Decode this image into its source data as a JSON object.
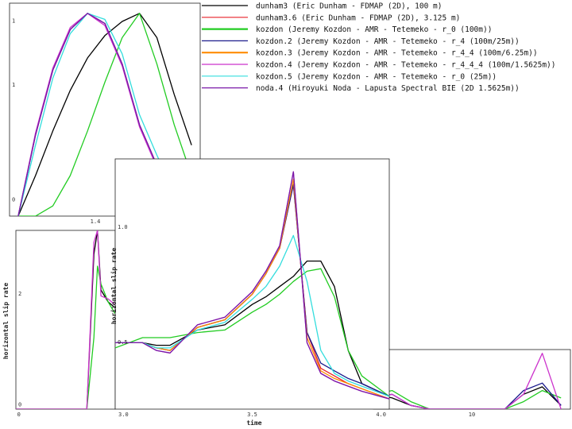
{
  "legend": {
    "entries": [
      {
        "label": "dunham3 (Eric Dunham - FDMAP (2D), 100 m)",
        "color": "#000000",
        "width": 1.2
      },
      {
        "label": "dunham3.6 (Eric Dunham - FDMAP (2D), 3.125 m)",
        "color": "#e8202a",
        "width": 1.2
      },
      {
        "label": "kozdon (Jeremy Kozdon - AMR - Tetemeko - r_0 (100m))",
        "color": "#22cc22",
        "width": 2.2
      },
      {
        "label": "kozdon.2 (Jeremy Kozdon - AMR - Tetemeko - r_4 (100m/25m))",
        "color": "#1a1a8c",
        "width": 1.2
      },
      {
        "label": "kozdon.3 (Jeremy Kozdon - AMR - Tetemeko - r_4_4 (100m/6.25m))",
        "color": "#ff8c00",
        "width": 2.2
      },
      {
        "label": "kozdon.4 (Jeremy Kozdon - AMR - Tetemeko - r_4_4_4 (100m/1.5625m))",
        "color": "#cc33cc",
        "width": 1.2
      },
      {
        "label": "kozdon.5 (Jeremy Kozdon - AMR - Tetemeko - r_0 (25m))",
        "color": "#33dddd",
        "width": 1.2
      },
      {
        "label": "noda.4 (Hiroyuki Noda - Lapusta Spectral BIE (2D 1.5625m))",
        "color": "#7a1aa8",
        "width": 1.2
      }
    ]
  },
  "chart_data": [
    {
      "type": "line",
      "panel": "top-left-zoom",
      "yticks": [
        "1",
        "1",
        "0"
      ],
      "xticks": [
        "1.4"
      ],
      "series": [
        {
          "color": "#000000",
          "x": [
            0,
            1,
            2,
            3,
            4,
            5,
            6,
            7,
            8,
            9,
            10
          ],
          "y": [
            0.0,
            0.2,
            0.42,
            0.62,
            0.78,
            0.89,
            0.96,
            1.0,
            0.88,
            0.6,
            0.35
          ]
        },
        {
          "color": "#e8202a",
          "x": [
            0,
            1,
            2,
            3,
            4,
            5,
            6,
            7,
            8,
            9,
            10
          ],
          "y": [
            0.0,
            0.4,
            0.72,
            0.92,
            1.0,
            0.95,
            0.75,
            0.45,
            0.25,
            0.1,
            0.0
          ]
        },
        {
          "color": "#22cc22",
          "x": [
            0,
            1,
            2,
            3,
            4,
            5,
            6,
            7,
            8,
            9,
            10
          ],
          "y": [
            0.0,
            0.0,
            0.05,
            0.2,
            0.42,
            0.66,
            0.88,
            1.0,
            0.75,
            0.45,
            0.2
          ]
        },
        {
          "color": "#1a1a8c",
          "x": [
            0,
            1,
            2,
            3,
            4,
            5,
            6,
            7,
            8,
            9,
            10
          ],
          "y": [
            0.0,
            0.4,
            0.72,
            0.92,
            1.0,
            0.95,
            0.75,
            0.45,
            0.25,
            0.1,
            0.0
          ]
        },
        {
          "color": "#cc33cc",
          "x": [
            0,
            1,
            2,
            3,
            4,
            5,
            6,
            7,
            8,
            9,
            10
          ],
          "y": [
            0.0,
            0.41,
            0.73,
            0.93,
            1.0,
            0.94,
            0.74,
            0.44,
            0.24,
            0.09,
            0.0
          ]
        },
        {
          "color": "#33dddd",
          "x": [
            0,
            1,
            2,
            3,
            4,
            5,
            6,
            7,
            8,
            9,
            10
          ],
          "y": [
            0.0,
            0.35,
            0.68,
            0.9,
            1.0,
            0.97,
            0.8,
            0.5,
            0.3,
            0.12,
            0.0
          ]
        },
        {
          "color": "#7a1aa8",
          "x": [
            0,
            1,
            2,
            3,
            4,
            5,
            6,
            7,
            8,
            9,
            10
          ],
          "y": [
            0.0,
            0.4,
            0.72,
            0.92,
            1.0,
            0.95,
            0.75,
            0.45,
            0.25,
            0.1,
            0.0
          ]
        }
      ]
    },
    {
      "type": "line",
      "panel": "left-full",
      "ylabel": "horizontal slip rate",
      "yticks": [
        "2",
        "0"
      ],
      "xticks": [
        "0"
      ],
      "series": [
        {
          "color": "#000000",
          "x": [
            0,
            5,
            10,
            11,
            11.5,
            12,
            13,
            14
          ],
          "y": [
            0,
            0,
            0,
            2.6,
            3.0,
            2.0,
            1.8,
            1.7
          ]
        },
        {
          "color": "#22cc22",
          "x": [
            0,
            5,
            10,
            11,
            11.5,
            12,
            13,
            14
          ],
          "y": [
            0,
            0,
            0,
            1.2,
            2.4,
            2.1,
            1.8,
            1.6
          ]
        },
        {
          "color": "#cc33cc",
          "x": [
            0,
            5,
            10,
            11,
            11.5,
            12,
            13,
            14
          ],
          "y": [
            0,
            0,
            0,
            2.8,
            3.0,
            1.9,
            1.85,
            1.75
          ]
        }
      ]
    },
    {
      "type": "line",
      "panel": "main-zoom",
      "xlabel": "time",
      "ylabel": "horizontal slip rate",
      "xticks": [
        "3.0",
        "3.5",
        "4.0"
      ],
      "yticks": [
        "1.0",
        "0.5"
      ],
      "series": [
        {
          "color": "#000000",
          "x": [
            3.0,
            3.1,
            3.15,
            3.2,
            3.3,
            3.4,
            3.5,
            3.55,
            3.6,
            3.65,
            3.7,
            3.75,
            3.8,
            3.85,
            3.9,
            4.0
          ],
          "y": [
            0.58,
            0.58,
            0.57,
            0.57,
            0.63,
            0.65,
            0.73,
            0.76,
            0.8,
            0.84,
            0.9,
            0.9,
            0.8,
            0.55,
            0.42,
            0.37
          ]
        },
        {
          "color": "#e8202a",
          "x": [
            3.0,
            3.1,
            3.15,
            3.2,
            3.3,
            3.4,
            3.5,
            3.55,
            3.6,
            3.65,
            3.7,
            3.75,
            3.8,
            3.85,
            3.9,
            4.0
          ],
          "y": [
            0.58,
            0.58,
            0.56,
            0.55,
            0.64,
            0.67,
            0.77,
            0.85,
            0.95,
            1.2,
            0.62,
            0.48,
            0.45,
            0.42,
            0.4,
            0.36
          ]
        },
        {
          "color": "#22cc22",
          "x": [
            3.0,
            3.1,
            3.15,
            3.2,
            3.3,
            3.4,
            3.5,
            3.55,
            3.6,
            3.65,
            3.7,
            3.75,
            3.8,
            3.85,
            3.9,
            4.0
          ],
          "y": [
            0.56,
            0.6,
            0.6,
            0.6,
            0.62,
            0.63,
            0.7,
            0.73,
            0.77,
            0.82,
            0.86,
            0.87,
            0.76,
            0.55,
            0.45,
            0.37
          ]
        },
        {
          "color": "#1a1a8c",
          "x": [
            3.0,
            3.1,
            3.15,
            3.2,
            3.3,
            3.4,
            3.5,
            3.55,
            3.6,
            3.65,
            3.7,
            3.75,
            3.8,
            3.85,
            3.9,
            4.0
          ],
          "y": [
            0.58,
            0.58,
            0.56,
            0.55,
            0.64,
            0.67,
            0.77,
            0.85,
            0.95,
            1.2,
            0.62,
            0.5,
            0.47,
            0.44,
            0.42,
            0.37
          ]
        },
        {
          "color": "#ff8c00",
          "x": [
            3.0,
            3.1,
            3.15,
            3.2,
            3.3,
            3.4,
            3.5,
            3.55,
            3.6,
            3.65,
            3.7,
            3.75,
            3.8,
            3.85,
            3.9,
            4.0
          ],
          "y": [
            0.58,
            0.58,
            0.56,
            0.55,
            0.64,
            0.67,
            0.77,
            0.85,
            0.95,
            1.22,
            0.6,
            0.47,
            0.44,
            0.42,
            0.4,
            0.36
          ]
        },
        {
          "color": "#cc33cc",
          "x": [
            3.0,
            3.1,
            3.15,
            3.2,
            3.3,
            3.4,
            3.5,
            3.55,
            3.6,
            3.65,
            3.7,
            3.75,
            3.8,
            3.85,
            3.9,
            4.0
          ],
          "y": [
            0.58,
            0.58,
            0.55,
            0.54,
            0.65,
            0.68,
            0.78,
            0.86,
            0.96,
            1.25,
            0.58,
            0.46,
            0.43,
            0.41,
            0.39,
            0.36
          ]
        },
        {
          "color": "#33dddd",
          "x": [
            3.0,
            3.1,
            3.15,
            3.2,
            3.3,
            3.4,
            3.5,
            3.55,
            3.6,
            3.65,
            3.7,
            3.75,
            3.8,
            3.85,
            3.9,
            4.0
          ],
          "y": [
            0.58,
            0.58,
            0.56,
            0.56,
            0.63,
            0.66,
            0.75,
            0.8,
            0.88,
            1.0,
            0.82,
            0.55,
            0.46,
            0.43,
            0.41,
            0.37
          ]
        },
        {
          "color": "#7a1aa8",
          "x": [
            3.0,
            3.1,
            3.15,
            3.2,
            3.3,
            3.4,
            3.5,
            3.55,
            3.6,
            3.65,
            3.7,
            3.75,
            3.8,
            3.85,
            3.9,
            4.0
          ],
          "y": [
            0.58,
            0.58,
            0.55,
            0.54,
            0.65,
            0.68,
            0.78,
            0.86,
            0.96,
            1.25,
            0.58,
            0.46,
            0.43,
            0.41,
            0.39,
            0.36
          ]
        }
      ]
    },
    {
      "type": "line",
      "panel": "bottom-right-tail",
      "xticks": [
        "10"
      ],
      "series": [
        {
          "color": "#000000",
          "x": [
            0,
            1,
            2,
            3,
            4,
            5,
            6,
            7,
            8,
            9,
            10
          ],
          "y": [
            0.2,
            0.15,
            0.05,
            0,
            0,
            0,
            0,
            0,
            0.2,
            0.3,
            0.05
          ]
        },
        {
          "color": "#22cc22",
          "x": [
            0,
            1,
            2,
            3,
            4,
            5,
            6,
            7,
            8,
            9,
            10
          ],
          "y": [
            0.2,
            0.25,
            0.1,
            0,
            0,
            0,
            0,
            0,
            0.1,
            0.25,
            0.15
          ]
        },
        {
          "color": "#1a1a8c",
          "x": [
            0,
            1,
            2,
            3,
            4,
            5,
            6,
            7,
            8,
            9,
            10
          ],
          "y": [
            0.15,
            0.2,
            0.05,
            0,
            0,
            0,
            0,
            0,
            0.25,
            0.35,
            0.05
          ]
        },
        {
          "color": "#cc33cc",
          "x": [
            0,
            1,
            2,
            3,
            4,
            5,
            6,
            7,
            8,
            9,
            10
          ],
          "y": [
            0.15,
            0.2,
            0.05,
            0,
            0,
            0,
            0,
            0,
            0.2,
            0.75,
            0.0
          ]
        }
      ]
    }
  ]
}
